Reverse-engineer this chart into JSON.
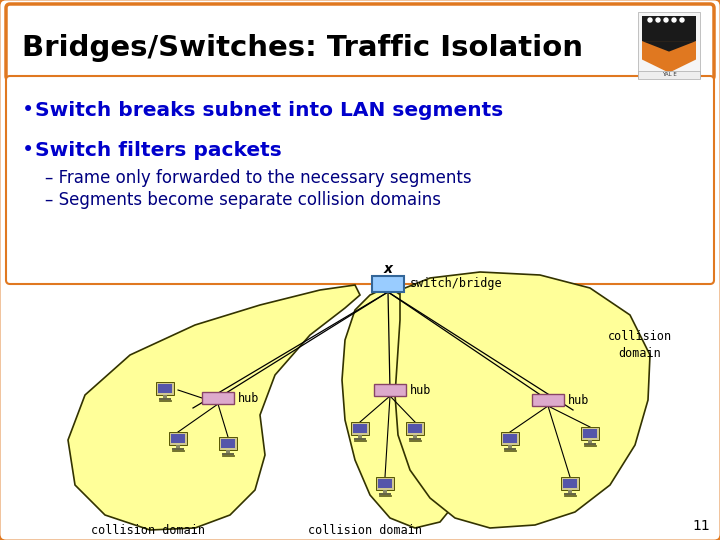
{
  "title": "Bridges/Switches: Traffic Isolation",
  "bullet1": "Switch breaks subnet into LAN segments",
  "bullet2": "Switch filters packets",
  "sub1": "Frame only forwarded to the necessary segments",
  "sub2": "Segments become separate collision domains",
  "border_color": "#E07820",
  "title_color": "#000000",
  "bullet_color": "#0000CC",
  "sub_color": "#000080",
  "bg_color": "#FFFFFF",
  "segment_fill": "#FFFF99",
  "segment_edge": "#333300",
  "switch_fill": "#99CCFF",
  "switch_edge": "#336699",
  "hub_fill": "#DDAACC",
  "hub_edge": "#884466",
  "line_color": "#000000",
  "text_color": "#000000",
  "diag_text_color": "#000000",
  "slide_number": "11",
  "shield_black": "#1a1a1a",
  "shield_orange": "#E07820",
  "shield_white": "#FFFFFF"
}
